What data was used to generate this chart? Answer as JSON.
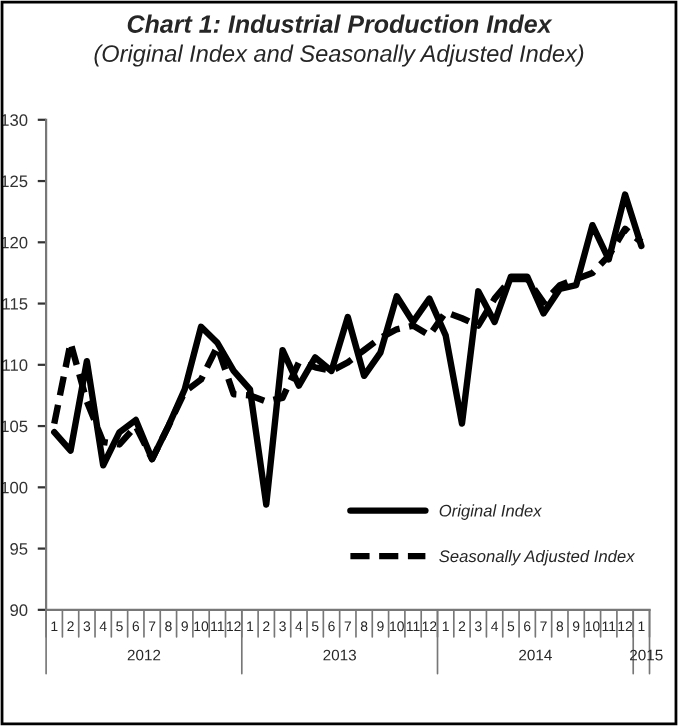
{
  "chart_data": {
    "type": "line",
    "title": "Chart 1: Industrial Production Index",
    "subtitle": "(Original Index and Seasonally Adjusted Index)",
    "categories": [
      "1",
      "2",
      "3",
      "4",
      "5",
      "6",
      "7",
      "8",
      "9",
      "10",
      "11",
      "12",
      "1",
      "2",
      "3",
      "4",
      "5",
      "6",
      "7",
      "8",
      "9",
      "10",
      "11",
      "12",
      "1",
      "2",
      "3",
      "4",
      "5",
      "6",
      "7",
      "8",
      "9",
      "10",
      "11",
      "12",
      "1"
    ],
    "annotations": [
      "2012",
      "2013",
      "2014",
      "2015"
    ],
    "series": [
      {
        "name": "Original Index",
        "color": "#000000",
        "line_style": "solid",
        "values": [
          104.5,
          103,
          110.3,
          101.8,
          104.5,
          105.5,
          102.3,
          105,
          108,
          113.1,
          111.8,
          109.5,
          108,
          98.6,
          111.2,
          108.3,
          110.6,
          109.5,
          113.9,
          109.1,
          111,
          115.6,
          113.5,
          115.4,
          112.4,
          105.2,
          116,
          113.5,
          117.2,
          117.2,
          114.2,
          116.2,
          116.5,
          121.4,
          118.6,
          123.9,
          119.7
        ]
      },
      {
        "name": "Seasonally Adjusted Index",
        "color": "#000000",
        "line_style": "dashed",
        "values": [
          105.2,
          111.8,
          107,
          103.7,
          103.5,
          105,
          102.3,
          105,
          107.8,
          108.8,
          111.5,
          107.6,
          107.5,
          107,
          107.3,
          110.2,
          109.8,
          109.5,
          110.2,
          111.2,
          112.2,
          112.9,
          113.2,
          112.4,
          114.3,
          113.8,
          113.2,
          115.4,
          117,
          117,
          115.1,
          116.5,
          117,
          117.5,
          118.9,
          121.1,
          120
        ]
      }
    ],
    "ylim": [
      90,
      130
    ],
    "yticks": [
      90,
      95,
      100,
      105,
      110,
      115,
      120,
      125,
      130
    ],
    "grid": false,
    "legend": "bottom right",
    "marker": "none"
  }
}
